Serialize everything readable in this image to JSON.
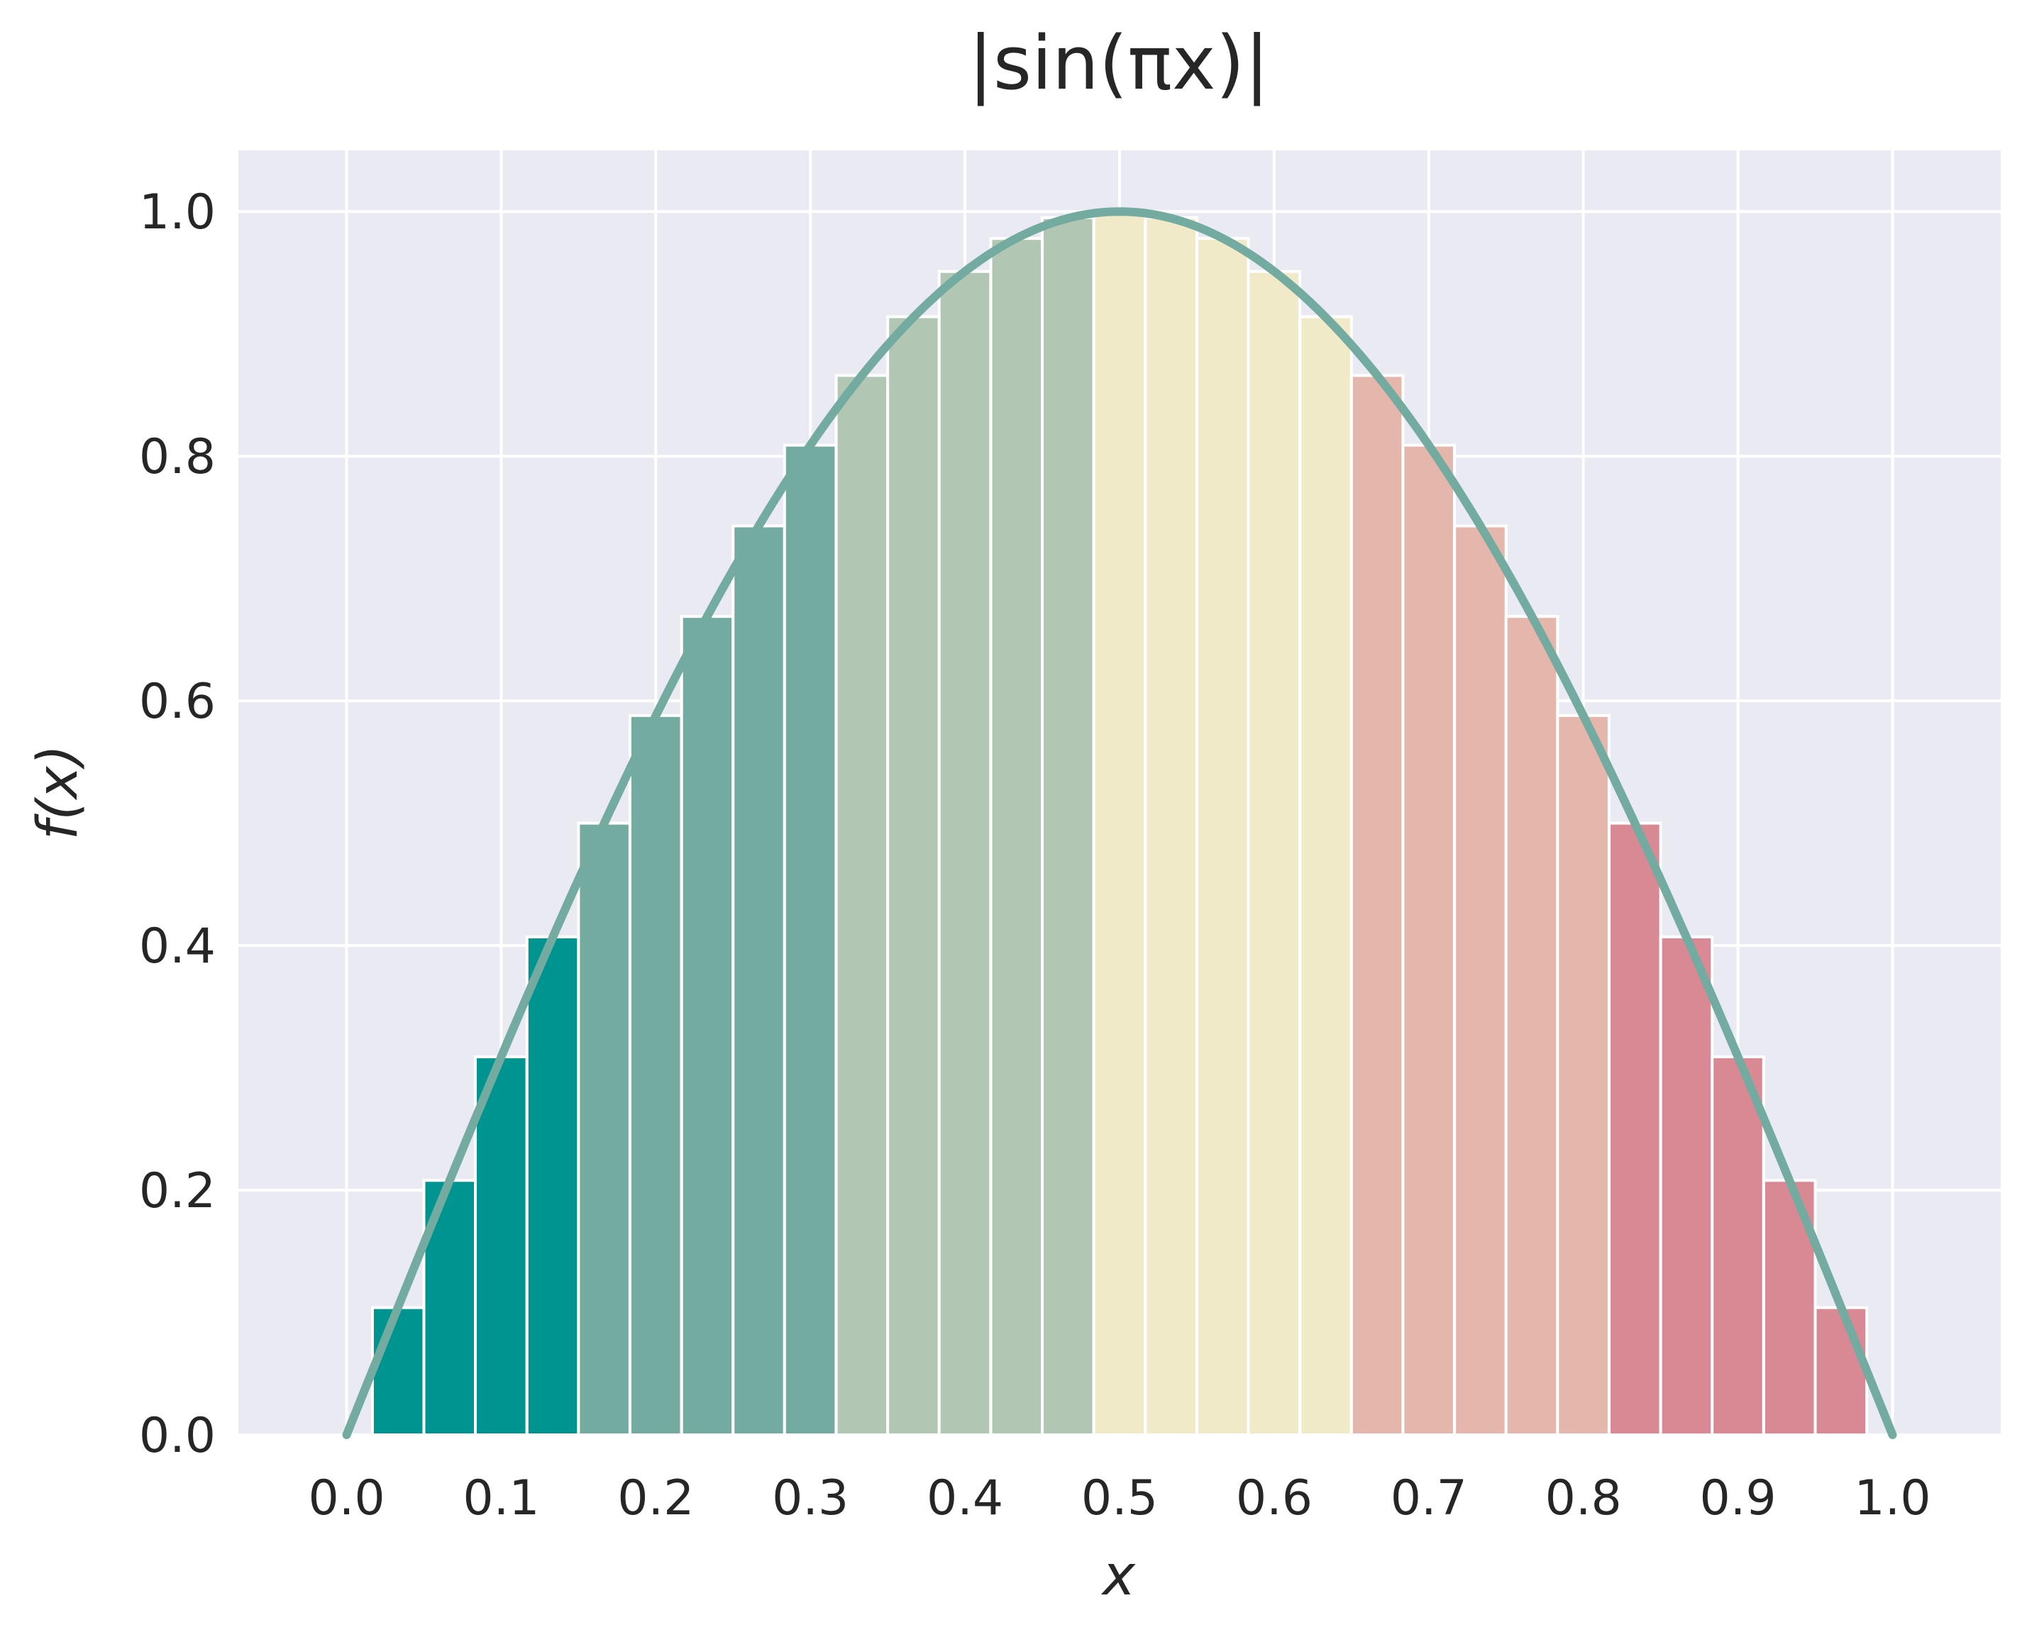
{
  "chart_data": {
    "type": "bar",
    "title": "|sin(πx)|",
    "xlabel": "x",
    "ylabel": "f(x)",
    "xlim": [
      -0.07,
      1.07
    ],
    "ylim": [
      0,
      1.05
    ],
    "xticks": [
      "0.0",
      "0.1",
      "0.2",
      "0.3",
      "0.4",
      "0.5",
      "0.6",
      "0.7",
      "0.8",
      "0.9",
      "1.0"
    ],
    "yticks": [
      "0.0",
      "0.2",
      "0.4",
      "0.6",
      "0.8",
      "1.0"
    ],
    "grid": true,
    "background": "#eaeaf2",
    "bars": {
      "x_left": [
        0.0167,
        0.05,
        0.0833,
        0.1167,
        0.15,
        0.1833,
        0.2167,
        0.25,
        0.2833,
        0.3167,
        0.35,
        0.3833,
        0.4167,
        0.45,
        0.4833,
        0.5167,
        0.55,
        0.5833,
        0.6167,
        0.65,
        0.6833,
        0.7167,
        0.75,
        0.7833,
        0.8167,
        0.85,
        0.8833,
        0.9167,
        0.95
      ],
      "width": 0.0333,
      "values": [
        0.104,
        0.208,
        0.309,
        0.407,
        0.5,
        0.588,
        0.669,
        0.743,
        0.809,
        0.866,
        0.914,
        0.951,
        0.978,
        0.995,
        1.0,
        0.995,
        0.978,
        0.951,
        0.914,
        0.866,
        0.809,
        0.743,
        0.669,
        0.588,
        0.5,
        0.407,
        0.309,
        0.208,
        0.104
      ],
      "colors": [
        "#009490",
        "#009490",
        "#009490",
        "#009490",
        "#74aba1",
        "#74aba1",
        "#74aba1",
        "#74aba1",
        "#74aba1",
        "#b1c7b3",
        "#b1c7b3",
        "#b1c7b3",
        "#b1c7b3",
        "#b1c7b3",
        "#f0eac8",
        "#f0eac8",
        "#f0eac8",
        "#f0eac8",
        "#f0eac8",
        "#e5b6ac",
        "#e5b6ac",
        "#e5b6ac",
        "#e5b6ac",
        "#e5b6ac",
        "#d98994",
        "#d98994",
        "#d98994",
        "#d98994",
        "#d98994"
      ]
    },
    "series": [
      {
        "type": "line",
        "function": "|sin(πx)|",
        "x_range": [
          0,
          1
        ],
        "color": "#74aba1"
      }
    ]
  }
}
